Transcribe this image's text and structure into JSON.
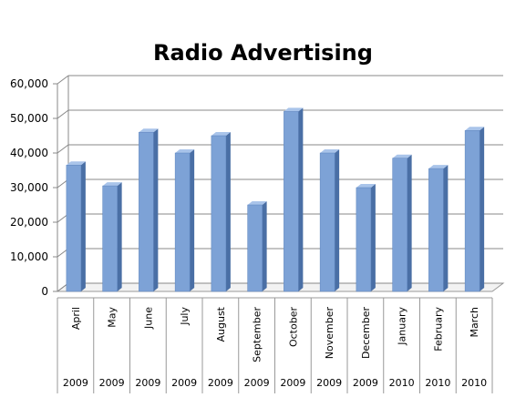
{
  "chart_data": {
    "type": "bar",
    "title": "Radio Advertising",
    "categories": [
      "April",
      "May",
      "June",
      "July",
      "August",
      "September",
      "October",
      "November",
      "December",
      "January",
      "February",
      "March"
    ],
    "years": [
      "2009",
      "2009",
      "2009",
      "2009",
      "2009",
      "2009",
      "2009",
      "2009",
      "2009",
      "2010",
      "2010",
      "2010"
    ],
    "values": [
      36500,
      30500,
      46000,
      40000,
      45000,
      25000,
      52000,
      40000,
      30000,
      38500,
      35500,
      46500
    ],
    "ylim": [
      0,
      60000
    ],
    "yticks": [
      "0",
      "10,000",
      "20,000",
      "30,000",
      "40,000",
      "50,000",
      "60,000"
    ],
    "grid": true,
    "legend": "none",
    "bar_color": "#7da2d6",
    "bar_side_color": "#4a6fa5",
    "bar_top_color": "#a9c4ea"
  }
}
